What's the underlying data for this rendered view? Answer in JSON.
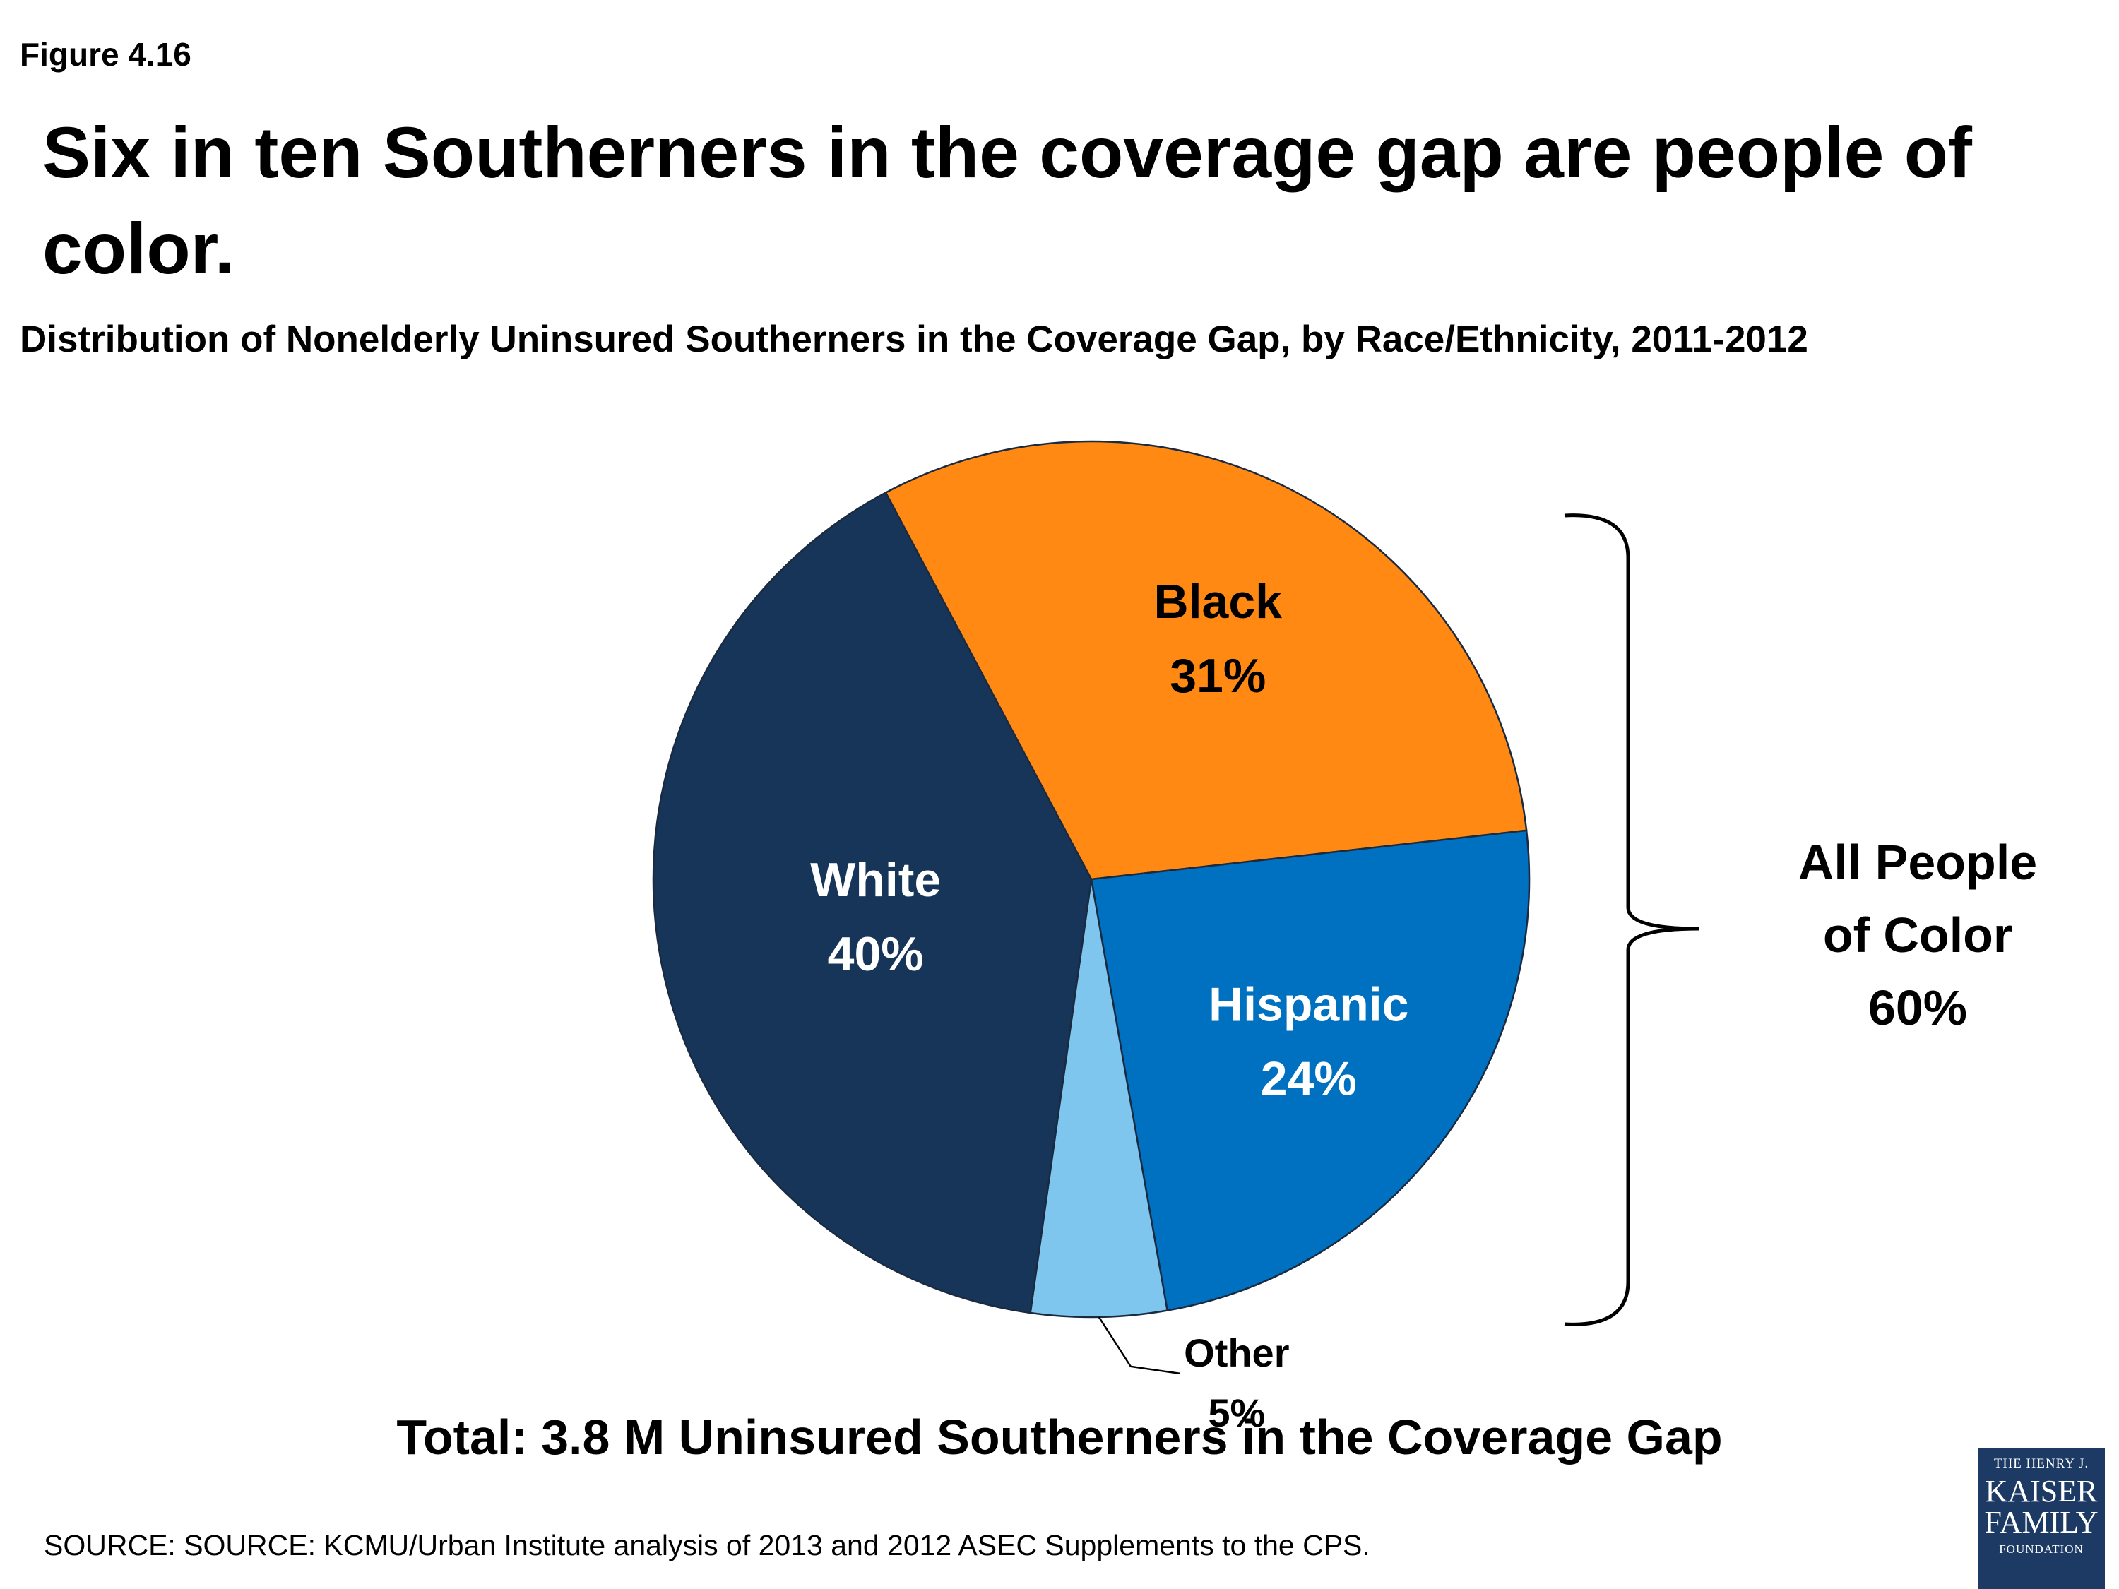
{
  "figure_label": "Figure 4.16",
  "title": "Six in ten Southerners in the coverage gap are people of color.",
  "subtitle": "Distribution of Nonelderly Uninsured Southerners  in the Coverage Gap, by Race/Ethnicity, 2011-2012",
  "chart_data": {
    "type": "pie",
    "slices": [
      {
        "label": "Black",
        "value": 31,
        "display": "31%",
        "color": "#FF8913"
      },
      {
        "label": "Hispanic",
        "value": 24,
        "display": "24%",
        "color": "#0070C0"
      },
      {
        "label": "Other",
        "value": 5,
        "display": "5%",
        "color": "#7FC6EE"
      },
      {
        "label": "White",
        "value": 40,
        "display": "40%",
        "color": "#163558"
      }
    ],
    "bracket_annotation": {
      "lines": [
        "All People",
        "of Color",
        "60%"
      ]
    }
  },
  "total_text": "Total: 3.8 M Uninsured Southerners in the Coverage Gap",
  "source": "SOURCE: SOURCE: KCMU/Urban Institute analysis of 2013 and 2012 ASEC Supplements to the CPS.",
  "logo": {
    "line1": "THE HENRY J.",
    "line2": "KAISER",
    "line3": "FAMILY",
    "line4": "FOUNDATION"
  }
}
